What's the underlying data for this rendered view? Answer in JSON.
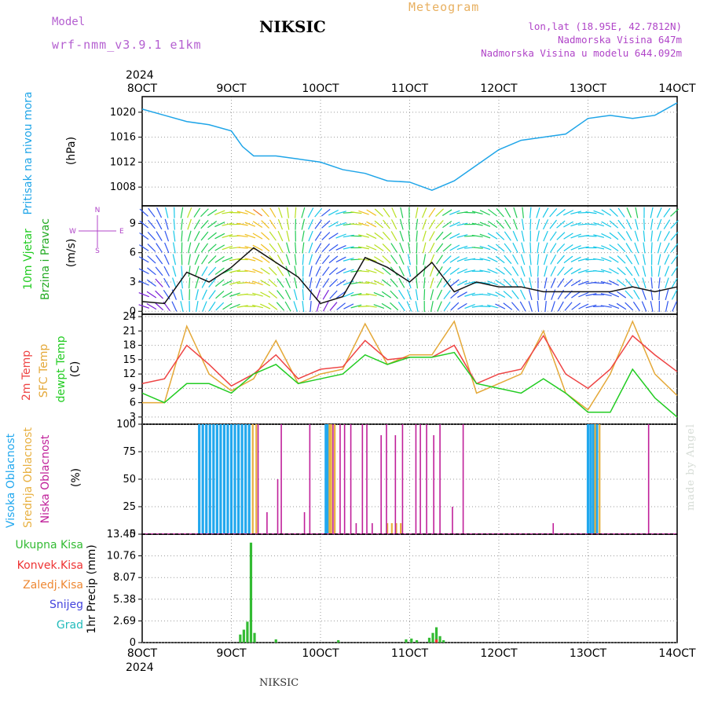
{
  "header": {
    "title": "NIKSIC",
    "model_label": "Model",
    "model_name": "wrf-nmm_v3.9.1 e1km",
    "meteogram_label": "Meteogram",
    "lonlat": "lon,lat (18.95E, 42.7812N)",
    "elevation": "Nadmorska Visina 647m",
    "model_elevation": "Nadmorska Visina u modelu 644.092m"
  },
  "footer": {
    "station": "NIKSIC",
    "made_by": "made by Angel"
  },
  "x_axis": {
    "year": "2024",
    "tick_labels": [
      "8OCT",
      "9OCT",
      "10OCT",
      "11OCT",
      "12OCT",
      "13OCT",
      "14OCT"
    ]
  },
  "colors": {
    "pressure": "#1fa5e8",
    "temp2m": "#ee4444",
    "sfc_temp": "#e4a838",
    "dewpoint": "#22cc22",
    "cloud_high": "#22a8ee",
    "cloud_mid": "#e8b040",
    "cloud_low": "#c0209a",
    "precip_total": "#33bb33",
    "precip_conv": "#ee3333",
    "precip_frozen": "#ee8833",
    "snow": "#4444dd",
    "graupel": "#22bbbb",
    "wind_label": "#22cc22",
    "wind_label2": "#22aa22",
    "wind_legend": "#b045c8"
  },
  "chart_data": [
    {
      "type": "line",
      "panel": "pressure",
      "ylabel": [
        "Pritisak na nivou mora",
        "(hPa)"
      ],
      "ylim": [
        1005,
        1022.5
      ],
      "yticks": [
        1008,
        1012,
        1016,
        1020
      ],
      "x": [
        "8OCT 00",
        "8OCT 06",
        "8OCT 12",
        "8OCT 18",
        "9OCT 00",
        "9OCT 03",
        "9OCT 06",
        "9OCT 12",
        "9OCT 18",
        "10OCT 00",
        "10OCT 06",
        "10OCT 12",
        "10OCT 18",
        "11OCT 00",
        "11OCT 06",
        "11OCT 12",
        "11OCT 18",
        "12OCT 00",
        "12OCT 06",
        "12OCT 12",
        "12OCT 18",
        "13OCT 00",
        "13OCT 06",
        "13OCT 12",
        "13OCT 18",
        "14OCT 00"
      ],
      "series": [
        {
          "values": [
            1020.5,
            1019.5,
            1018.5,
            1018.0,
            1017.0,
            1014.5,
            1013.0,
            1013.0,
            1012.5,
            1012.0,
            1010.8,
            1010.2,
            1009.0,
            1008.8,
            1007.5,
            1009.0,
            1011.5,
            1014.0,
            1015.5,
            1016.0,
            1016.5,
            1019.0,
            1019.5,
            1019.0,
            1019.5,
            1021.5
          ]
        }
      ],
      "grid": true
    },
    {
      "type": "line",
      "panel": "wind",
      "ylabel": [
        "10m Vjetar",
        "Brzina i Pravac",
        "(m/s)"
      ],
      "ylim": [
        -0.3,
        10.8
      ],
      "yticks": [
        0,
        3,
        6,
        9
      ],
      "x": [
        "8OCT 00",
        "8OCT 06",
        "8OCT 12",
        "8OCT 18",
        "9OCT 00",
        "9OCT 06",
        "9OCT 12",
        "9OCT 18",
        "10OCT 00",
        "10OCT 06",
        "10OCT 12",
        "10OCT 18",
        "11OCT 00",
        "11OCT 06",
        "11OCT 12",
        "11OCT 18",
        "12OCT 00",
        "12OCT 06",
        "12OCT 12",
        "12OCT 18",
        "13OCT 00",
        "13OCT 06",
        "13OCT 12",
        "13OCT 18",
        "14OCT 00"
      ],
      "series": [
        {
          "values": [
            1.0,
            0.8,
            4.0,
            3.0,
            4.5,
            6.5,
            5.0,
            3.5,
            0.8,
            1.5,
            5.5,
            4.5,
            3.0,
            5.0,
            2.0,
            3.0,
            2.5,
            2.5,
            2.0,
            2.0,
            2.0,
            2.0,
            2.5,
            2.0,
            2.5
          ]
        }
      ],
      "legend": {
        "n": "N",
        "w": "W",
        "e": "E",
        "s": "S"
      },
      "grid": true
    },
    {
      "type": "line",
      "panel": "temperature",
      "ylabel": [
        "2m Temp",
        "SFC Temp",
        "dewpt Temp",
        "(C)"
      ],
      "ylim": [
        1.5,
        24.5
      ],
      "yticks": [
        3,
        6,
        9,
        12,
        15,
        18,
        21,
        24
      ],
      "x": [
        "8OCT 00",
        "8OCT 06",
        "8OCT 12",
        "8OCT 18",
        "9OCT 00",
        "9OCT 06",
        "9OCT 12",
        "9OCT 18",
        "10OCT 00",
        "10OCT 06",
        "10OCT 12",
        "10OCT 18",
        "11OCT 00",
        "11OCT 06",
        "11OCT 12",
        "11OCT 18",
        "12OCT 00",
        "12OCT 06",
        "12OCT 12",
        "12OCT 18",
        "13OCT 00",
        "13OCT 06",
        "13OCT 12",
        "13OCT 18",
        "14OCT 00"
      ],
      "series": [
        {
          "name": "2m Temp",
          "values": [
            10,
            11,
            18,
            14,
            9.5,
            12,
            16,
            11,
            13,
            13.5,
            19,
            15,
            15.5,
            15.5,
            18,
            10,
            12,
            13,
            20,
            12,
            9,
            13,
            20,
            16,
            12.5
          ]
        },
        {
          "name": "SFC Temp",
          "values": [
            6,
            6,
            22,
            12,
            8.5,
            11,
            19,
            10,
            12,
            13,
            22.5,
            14,
            16,
            16,
            23,
            8,
            10,
            12,
            21,
            8,
            4.5,
            12,
            23,
            12,
            7.5
          ]
        },
        {
          "name": "dewpt Temp",
          "values": [
            8,
            6,
            10,
            10,
            8,
            12,
            14,
            10,
            11,
            12,
            16,
            14,
            15.5,
            15.5,
            16.5,
            10,
            9,
            8,
            11,
            8,
            4,
            4,
            13,
            7,
            3
          ]
        }
      ],
      "grid": true
    },
    {
      "type": "bar",
      "panel": "cloud",
      "ylabel": [
        "Visoka Oblacnost",
        "Srednja Oblacnost",
        "Niska Oblacnost",
        "(%)"
      ],
      "ylim": [
        0,
        100
      ],
      "yticks": [
        0,
        25,
        50,
        75,
        100
      ],
      "series": [
        {
          "name": "Visoka Oblacnost",
          "x": [
            8.64,
            8.68,
            8.72,
            8.76,
            8.8,
            8.84,
            8.88,
            8.92,
            8.96,
            9.0,
            9.04,
            9.08,
            9.12,
            9.16,
            9.2,
            10.06,
            10.08,
            13.0,
            13.03,
            13.06,
            13.1
          ],
          "values": [
            100,
            100,
            100,
            100,
            100,
            100,
            100,
            100,
            100,
            100,
            100,
            100,
            100,
            100,
            100,
            100,
            100,
            100,
            100,
            100,
            100
          ]
        },
        {
          "name": "Srednja Oblacnost",
          "x": [
            9.24,
            9.28,
            10.1,
            10.12,
            10.16,
            10.75,
            10.8,
            10.85,
            10.9,
            13.08,
            13.13
          ],
          "values": [
            100,
            100,
            100,
            100,
            100,
            10,
            10,
            10,
            10,
            100,
            100
          ]
        },
        {
          "name": "Niska Oblacnost",
          "x": [
            9.3,
            9.4,
            9.52,
            9.56,
            9.82,
            9.88,
            10.14,
            10.22,
            10.27,
            10.34,
            10.4,
            10.47,
            10.52,
            10.58,
            10.68,
            10.74,
            10.84,
            10.92,
            11.07,
            11.12,
            11.19,
            11.27,
            11.34,
            11.48,
            11.6,
            12.61,
            13.68
          ],
          "values": [
            100,
            20,
            50,
            100,
            20,
            100,
            100,
            100,
            100,
            100,
            10,
            100,
            100,
            10,
            90,
            100,
            90,
            100,
            100,
            100,
            100,
            90,
            100,
            25,
            100,
            10,
            100
          ]
        }
      ],
      "grid": true
    },
    {
      "type": "bar",
      "panel": "precip",
      "ylabel": [
        "1hr Precip (mm)"
      ],
      "legend": [
        "Ukupna Kisa",
        "Konvek.Kisa",
        "Zaledj.Kisa",
        "Snijeg",
        "Grad"
      ],
      "ylim": [
        0,
        13.45
      ],
      "yticks": [
        "0",
        "2.69",
        "5.38",
        "8.07",
        "10.76",
        "13.45"
      ],
      "series": [
        {
          "name": "Ukupna Kisa",
          "x": [
            9.1,
            9.14,
            9.18,
            9.22,
            9.26,
            9.5,
            10.2,
            10.96,
            11.02,
            11.08,
            11.22,
            11.26,
            11.3,
            11.34,
            11.38
          ],
          "values": [
            1.0,
            1.6,
            2.6,
            12.4,
            1.2,
            0.4,
            0.3,
            0.4,
            0.5,
            0.3,
            0.6,
            1.2,
            1.9,
            0.8,
            0.3
          ]
        },
        {
          "name": "Konvek.Kisa",
          "x": [
            11.3
          ],
          "values": [
            0.4
          ]
        }
      ],
      "grid": true
    }
  ]
}
